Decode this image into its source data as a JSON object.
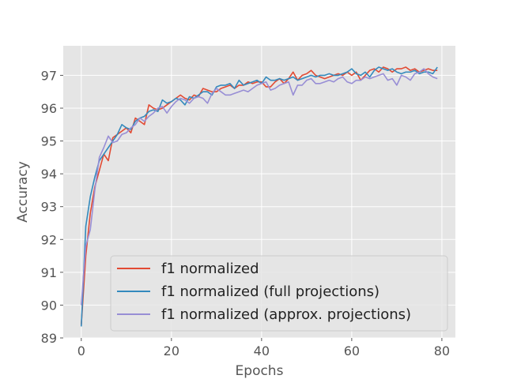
{
  "chart_data": {
    "type": "line",
    "title": "",
    "xlabel": "Epochs",
    "ylabel": "Accuracy",
    "xlim": [
      -4,
      83
    ],
    "ylim": [
      89,
      97.9
    ],
    "xticks": [
      0,
      20,
      40,
      60,
      80
    ],
    "yticks": [
      89,
      90,
      91,
      92,
      93,
      94,
      95,
      96,
      97
    ],
    "grid": true,
    "legend_position": "bottom-right",
    "background": "#e5e5e5",
    "series": [
      {
        "name": "f1 normalized",
        "color": "#e24a33",
        "x": [
          0,
          1,
          2,
          3,
          4,
          5,
          6,
          7,
          8,
          9,
          10,
          11,
          12,
          13,
          14,
          15,
          16,
          17,
          18,
          19,
          20,
          21,
          22,
          23,
          24,
          25,
          26,
          27,
          28,
          29,
          30,
          31,
          32,
          33,
          34,
          35,
          36,
          37,
          38,
          39,
          40,
          41,
          42,
          43,
          44,
          45,
          46,
          47,
          48,
          49,
          50,
          51,
          52,
          53,
          54,
          55,
          56,
          57,
          58,
          59,
          60,
          61,
          62,
          63,
          64,
          65,
          66,
          67,
          68,
          69,
          70,
          71,
          72,
          73,
          74,
          75,
          76,
          77,
          78,
          79
        ],
        "values": [
          89.4,
          91.5,
          92.8,
          93.6,
          94.1,
          94.6,
          94.4,
          95.1,
          95.2,
          95.3,
          95.4,
          95.25,
          95.7,
          95.6,
          95.5,
          96.1,
          96.0,
          95.95,
          96.0,
          96.1,
          96.2,
          96.3,
          96.4,
          96.3,
          96.25,
          96.4,
          96.35,
          96.6,
          96.55,
          96.5,
          96.5,
          96.6,
          96.65,
          96.7,
          96.6,
          96.7,
          96.7,
          96.8,
          96.75,
          96.8,
          96.8,
          96.65,
          96.65,
          96.8,
          96.9,
          96.75,
          96.9,
          97.1,
          96.85,
          97.0,
          97.05,
          97.15,
          97.0,
          96.95,
          96.9,
          96.95,
          97.0,
          97.05,
          97.0,
          97.1,
          97.0,
          97.1,
          96.85,
          97.0,
          97.15,
          97.2,
          97.1,
          97.25,
          97.2,
          97.1,
          97.2,
          97.2,
          97.25,
          97.15,
          97.2,
          97.1,
          97.15,
          97.2,
          97.15,
          97.15
        ]
      },
      {
        "name": "f1 normalized (full projections)",
        "color": "#348abd",
        "x": [
          0,
          1,
          2,
          3,
          4,
          5,
          6,
          7,
          8,
          9,
          10,
          11,
          12,
          13,
          14,
          15,
          16,
          17,
          18,
          19,
          20,
          21,
          22,
          23,
          24,
          25,
          26,
          27,
          28,
          29,
          30,
          31,
          32,
          33,
          34,
          35,
          36,
          37,
          38,
          39,
          40,
          41,
          42,
          43,
          44,
          45,
          46,
          47,
          48,
          49,
          50,
          51,
          52,
          53,
          54,
          55,
          56,
          57,
          58,
          59,
          60,
          61,
          62,
          63,
          64,
          65,
          66,
          67,
          68,
          69,
          70,
          71,
          72,
          73,
          74,
          75,
          76,
          77,
          78,
          79
        ],
        "values": [
          89.35,
          92.4,
          93.3,
          93.9,
          94.4,
          94.6,
          94.8,
          95.0,
          95.2,
          95.5,
          95.4,
          95.35,
          95.6,
          95.7,
          95.75,
          95.9,
          95.95,
          95.9,
          96.25,
          96.15,
          96.2,
          96.3,
          96.25,
          96.1,
          96.35,
          96.3,
          96.4,
          96.5,
          96.5,
          96.4,
          96.65,
          96.7,
          96.7,
          96.75,
          96.6,
          96.85,
          96.7,
          96.75,
          96.8,
          96.85,
          96.75,
          96.95,
          96.85,
          96.85,
          96.9,
          96.85,
          96.9,
          96.95,
          96.85,
          96.9,
          96.95,
          97.0,
          96.95,
          97.0,
          97.0,
          97.05,
          97.0,
          97.0,
          97.05,
          97.1,
          97.2,
          97.05,
          97.0,
          97.1,
          96.95,
          97.15,
          97.25,
          97.2,
          97.15,
          97.2,
          97.1,
          97.05,
          97.1,
          97.1,
          97.15,
          97.05,
          97.1,
          97.1,
          97.05,
          97.25
        ]
      },
      {
        "name": "f1 normalized (approx. projections)",
        "color": "#988ed5",
        "x": [
          0,
          1,
          2,
          3,
          4,
          5,
          6,
          7,
          8,
          9,
          10,
          11,
          12,
          13,
          14,
          15,
          16,
          17,
          18,
          19,
          20,
          21,
          22,
          23,
          24,
          25,
          26,
          27,
          28,
          29,
          30,
          31,
          32,
          33,
          34,
          35,
          36,
          37,
          38,
          39,
          40,
          41,
          42,
          43,
          44,
          45,
          46,
          47,
          48,
          49,
          50,
          51,
          52,
          53,
          54,
          55,
          56,
          57,
          58,
          59,
          60,
          61,
          62,
          63,
          64,
          65,
          66,
          67,
          68,
          69,
          70,
          71,
          72,
          73,
          74,
          75,
          76,
          77,
          78,
          79
        ],
        "values": [
          90.0,
          91.8,
          92.3,
          93.5,
          94.5,
          94.8,
          95.15,
          94.95,
          95.0,
          95.2,
          95.25,
          95.4,
          95.5,
          95.7,
          95.6,
          95.75,
          95.85,
          96.0,
          96.05,
          95.85,
          96.05,
          96.2,
          96.3,
          96.25,
          96.15,
          96.3,
          96.35,
          96.3,
          96.15,
          96.45,
          96.6,
          96.5,
          96.4,
          96.4,
          96.45,
          96.5,
          96.55,
          96.5,
          96.6,
          96.7,
          96.75,
          96.8,
          96.55,
          96.6,
          96.7,
          96.75,
          96.8,
          96.4,
          96.7,
          96.7,
          96.85,
          96.9,
          96.75,
          96.75,
          96.8,
          96.85,
          96.8,
          96.9,
          96.95,
          96.8,
          96.75,
          96.85,
          96.85,
          96.95,
          96.9,
          96.95,
          97.0,
          97.05,
          96.85,
          96.9,
          96.7,
          97.0,
          96.95,
          96.85,
          97.05,
          97.1,
          97.2,
          97.05,
          96.95,
          96.9
        ]
      }
    ]
  }
}
